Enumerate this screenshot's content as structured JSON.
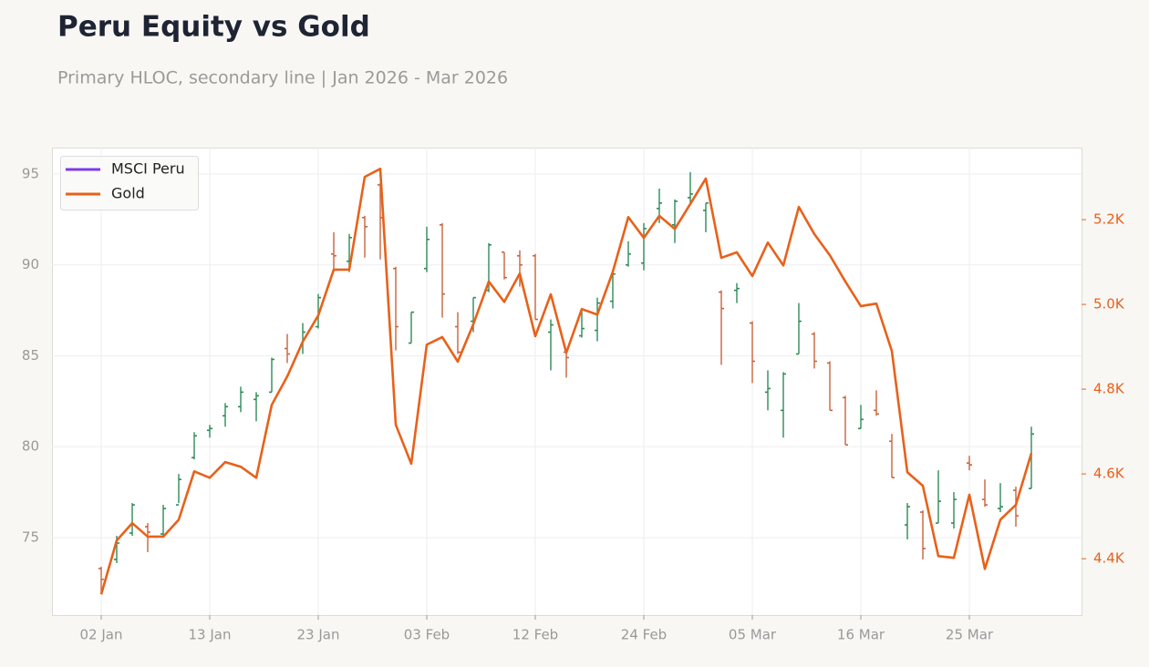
{
  "chart_data": {
    "type": "hloc",
    "title": "Peru Equity vs Gold",
    "subtitle": "Primary HLOC, secondary line | Jan 2026 - Mar 2026",
    "categories": [
      "02 Jan",
      null,
      null,
      null,
      null,
      null,
      null,
      "13 Jan",
      null,
      null,
      null,
      null,
      null,
      null,
      "23 Jan",
      null,
      null,
      null,
      null,
      null,
      null,
      "03 Feb",
      null,
      null,
      null,
      null,
      null,
      null,
      "12 Feb",
      null,
      null,
      null,
      null,
      null,
      null,
      "24 Feb",
      null,
      null,
      null,
      null,
      null,
      null,
      "05 Mar",
      null,
      null,
      null,
      null,
      null,
      null,
      "16 Mar",
      null,
      null,
      null,
      null,
      null,
      null,
      "25 Mar",
      null,
      null,
      null,
      null
    ],
    "series": [
      {
        "name": "MSCI Peru",
        "type": "hloc",
        "color": "#7c3aed",
        "up_color": "#2e8b57",
        "down_color": "#c8643c",
        "open": [
          73.3,
          73.8,
          75.25,
          75.6,
          75.2,
          76.8,
          79.4,
          80.9,
          81.7,
          82.2,
          82.6,
          83.0,
          85.4,
          85.6,
          86.6,
          90.6,
          90.2,
          92.6,
          94.4,
          89.8,
          85.7,
          89.8,
          92.2,
          86.6,
          86.9,
          88.6,
          90.7,
          90.5,
          90.5,
          86.3,
          85.2,
          86.1,
          86.4,
          88.0,
          90.0,
          90.1,
          93.1,
          92.2,
          93.7,
          93.0,
          88.5,
          88.6,
          86.8,
          83.0,
          82.0,
          85.1,
          86.2,
          84.6,
          82.7,
          81.0,
          82.0,
          80.3,
          75.7,
          76.4,
          75.8,
          75.8,
          79.1,
          77.1,
          76.6,
          77.6,
          77.7
        ],
        "high": [
          73.4,
          75.1,
          76.9,
          75.8,
          76.8,
          78.5,
          80.8,
          81.2,
          82.4,
          83.3,
          83.0,
          84.9,
          86.2,
          86.8,
          88.4,
          91.8,
          91.7,
          92.7,
          94.5,
          89.9,
          87.4,
          92.1,
          92.3,
          87.4,
          88.2,
          91.2,
          90.7,
          90.8,
          90.6,
          87.0,
          85.3,
          87.5,
          88.2,
          89.6,
          91.3,
          92.3,
          94.2,
          93.6,
          95.1,
          93.4,
          88.6,
          89.0,
          86.9,
          84.2,
          84.1,
          87.9,
          86.3,
          84.7,
          82.8,
          82.3,
          83.1,
          80.7,
          76.9,
          76.5,
          78.7,
          77.5,
          79.5,
          78.2,
          78.0,
          77.8,
          81.1
        ],
        "low": [
          72.0,
          73.6,
          75.1,
          74.2,
          75.1,
          76.9,
          79.3,
          80.5,
          81.1,
          81.9,
          81.4,
          83.0,
          84.6,
          85.1,
          86.5,
          89.6,
          89.6,
          90.4,
          90.3,
          85.3,
          85.7,
          89.6,
          87.1,
          85.1,
          86.3,
          88.5,
          89.2,
          88.8,
          87.0,
          84.2,
          83.8,
          86.0,
          85.8,
          87.6,
          89.9,
          89.7,
          92.3,
          91.2,
          93.4,
          91.8,
          84.5,
          87.9,
          83.5,
          82.0,
          80.5,
          85.1,
          84.3,
          82.0,
          80.1,
          81.0,
          81.7,
          78.3,
          74.9,
          73.8,
          75.8,
          75.5,
          78.7,
          76.7,
          76.4,
          75.6,
          77.7
        ],
        "close": [
          72.7,
          74.7,
          76.8,
          75.3,
          76.6,
          78.2,
          80.6,
          81.0,
          82.2,
          83.0,
          82.8,
          84.8,
          85.1,
          86.3,
          88.2,
          90.5,
          91.5,
          92.1,
          92.6,
          86.6,
          87.4,
          91.4,
          88.4,
          85.2,
          88.2,
          91.1,
          89.3,
          90.0,
          87.0,
          86.7,
          84.9,
          86.5,
          87.9,
          89.5,
          90.6,
          92.0,
          93.4,
          93.5,
          93.9,
          93.4,
          87.6,
          88.7,
          84.7,
          83.2,
          84.0,
          86.9,
          84.7,
          82.0,
          80.1,
          81.5,
          81.8,
          78.3,
          76.7,
          74.4,
          77.0,
          77.1,
          79.0,
          76.8,
          76.7,
          76.2,
          80.7
        ]
      },
      {
        "name": "Gold",
        "type": "line",
        "axis": "y2",
        "color": "#e8611a",
        "values": [
          4316,
          4443,
          4484,
          4452,
          4452,
          4492,
          4606,
          4591,
          4628,
          4617,
          4591,
          4763,
          4830,
          4912,
          4974,
          5082,
          5082,
          5301,
          5320,
          4716,
          4624,
          4905,
          4923,
          4865,
          4953,
          5054,
          5006,
          5073,
          4925,
          5024,
          4886,
          4989,
          4976,
          5077,
          5206,
          5157,
          5209,
          5178,
          5237,
          5297,
          5110,
          5123,
          5067,
          5146,
          5092,
          5230,
          5166,
          5116,
          5054,
          4996,
          5002,
          4890,
          4604,
          4572,
          4406,
          4402,
          4551,
          4376,
          4492,
          4527,
          4649
        ]
      }
    ],
    "ylim": [
      70.74,
      96.45
    ],
    "yticks": [
      75,
      80,
      85,
      90,
      95
    ],
    "y2lim": [
      4267,
      5370
    ],
    "y2ticks": [
      {
        "value": 4400,
        "label": "4.4K"
      },
      {
        "value": 4600,
        "label": "4.6K"
      },
      {
        "value": 4800,
        "label": "4.8K"
      },
      {
        "value": 5000,
        "label": "5.0K"
      },
      {
        "value": 5200,
        "label": "5.2K"
      }
    ],
    "grid": true,
    "legend": "upper left"
  }
}
